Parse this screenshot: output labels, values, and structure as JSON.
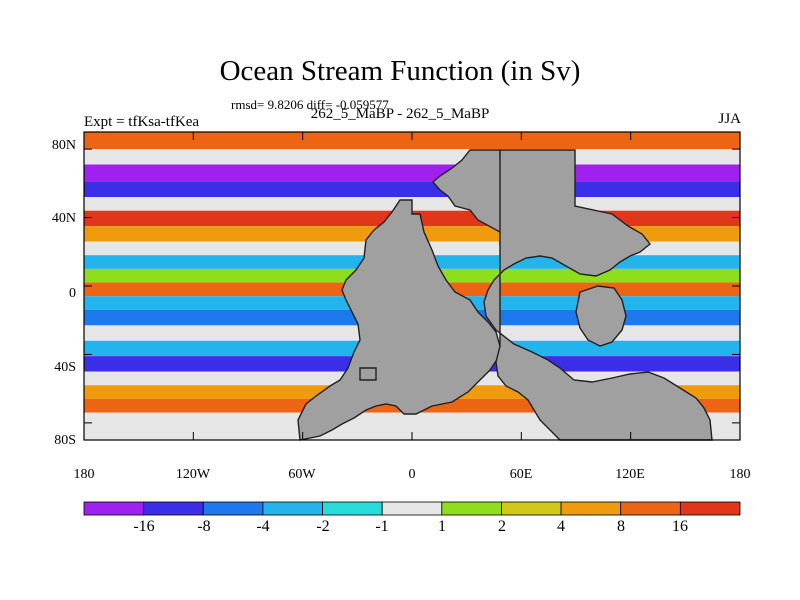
{
  "figure": {
    "title": "Ocean Stream Function (in Sv)",
    "stats": "rmsd= 9.8206  diff= -0.059577",
    "experiment": "Expt = tfKsa-tfKea",
    "run_label": "262_5_MaBP - 262_5_MaBP",
    "season": "JJA"
  },
  "axes": {
    "y_ticks": [
      "80N",
      "40N",
      "0",
      "40S",
      "80S"
    ],
    "x_ticks": [
      "180",
      "120W",
      "60W",
      "0",
      "60E",
      "120E",
      "180"
    ]
  },
  "colorbar": {
    "colors": [
      "#a020f0",
      "#3a2ee6",
      "#1e78ee",
      "#22b4ec",
      "#26dcd8",
      "#e6e6e6",
      "#8ede1e",
      "#d2c81a",
      "#f09a0e",
      "#ec6414",
      "#e2361a"
    ],
    "labels": [
      "-16",
      "-8",
      "-4",
      "-2",
      "-1",
      "1",
      "2",
      "4",
      "8",
      "16"
    ]
  },
  "land_color": "#a0a0a0",
  "bands": [
    {
      "lat": 84,
      "cls": 9
    },
    {
      "lat": 76,
      "cls": 5
    },
    {
      "lat": 66,
      "cls": 0
    },
    {
      "lat": 56,
      "cls": 1
    },
    {
      "lat": 48,
      "cls": 5
    },
    {
      "lat": 40,
      "cls": 10
    },
    {
      "lat": 30,
      "cls": 8
    },
    {
      "lat": 22,
      "cls": 5
    },
    {
      "lat": 14,
      "cls": 3
    },
    {
      "lat": 6,
      "cls": 6
    },
    {
      "lat": -2,
      "cls": 9
    },
    {
      "lat": -10,
      "cls": 3
    },
    {
      "lat": -18,
      "cls": 2
    },
    {
      "lat": -28,
      "cls": 5
    },
    {
      "lat": -36,
      "cls": 3
    },
    {
      "lat": -46,
      "cls": 1
    },
    {
      "lat": -54,
      "cls": 5
    },
    {
      "lat": -62,
      "cls": 8
    },
    {
      "lat": -70,
      "cls": 9
    },
    {
      "lat": -78,
      "cls": 5
    }
  ]
}
